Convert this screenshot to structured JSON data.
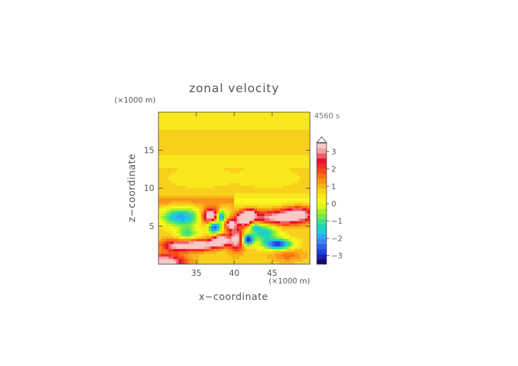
{
  "chart_data": {
    "type": "heatmap",
    "title": "zonal velocity",
    "xlabel": "x−coordinate",
    "ylabel": "z−coordinate",
    "x_unit": "(×1000 m)",
    "y_unit": "(×1000 m)",
    "time_label": "4560 s",
    "xlim": [
      30,
      50
    ],
    "ylim": [
      0,
      20
    ],
    "x_ticks": [
      35,
      40,
      45
    ],
    "x_tick_labels": [
      "35",
      "40",
      "45"
    ],
    "y_ticks": [
      5,
      10,
      15
    ],
    "y_tick_labels": [
      "5",
      "10",
      "15"
    ],
    "colorbar": {
      "min": -3.5,
      "max": 3.5,
      "step": 0.25,
      "ticks": [
        3,
        2,
        1,
        0,
        -1,
        -2,
        -3
      ],
      "tick_labels": [
        "3",
        "2",
        "1",
        "0",
        "−1",
        "−2",
        "−3"
      ],
      "colors": [
        "#16096e",
        "#1f1fb3",
        "#1d44d8",
        "#2d62e8",
        "#3a86f0",
        "#2fa8ee",
        "#22c7e3",
        "#1fd8b2",
        "#3fe08a",
        "#70ea52",
        "#a8f02a",
        "#d8f51e",
        "#f8f81e",
        "#f8e81c",
        "#f8d01c",
        "#f8b41a",
        "#f89418",
        "#f87018",
        "#f84c18",
        "#f02c2c",
        "#e8102c",
        "#f2606a",
        "#f7a0a4",
        "#fbc8c8"
      ],
      "extend": "max"
    },
    "field_features": [
      {
        "type": "background",
        "value": 0.1
      },
      {
        "type": "band",
        "x": [
          30,
          50
        ],
        "z": [
          17.5,
          20
        ],
        "value": -0.3
      },
      {
        "type": "jet",
        "x": [
          33,
          39
        ],
        "z": [
          10,
          13
        ],
        "value": -0.3
      },
      {
        "type": "jet",
        "x": [
          41,
          47
        ],
        "z": [
          10,
          13
        ],
        "value": -0.3
      },
      {
        "type": "jet",
        "x": [
          33,
          40
        ],
        "z": [
          7,
          9
        ],
        "value": 0.5
      },
      {
        "type": "jet",
        "x": [
          40,
          47
        ],
        "z": [
          7,
          9
        ],
        "value": -0.5
      },
      {
        "type": "cell",
        "x": 36.9,
        "z": 6.3,
        "value": 3.2
      },
      {
        "type": "cell",
        "x": 38.2,
        "z": 3.1,
        "value": 3.0
      },
      {
        "type": "cell",
        "x": 41.5,
        "z": 5.6,
        "value": 3.2
      },
      {
        "type": "cell",
        "x": 45.8,
        "z": 2.6,
        "value": -3.0
      },
      {
        "type": "cell",
        "x": 37.5,
        "z": 5.0,
        "value": -3.2
      },
      {
        "type": "cell",
        "x": 42.5,
        "z": 3.2,
        "value": -3.3
      }
    ]
  }
}
